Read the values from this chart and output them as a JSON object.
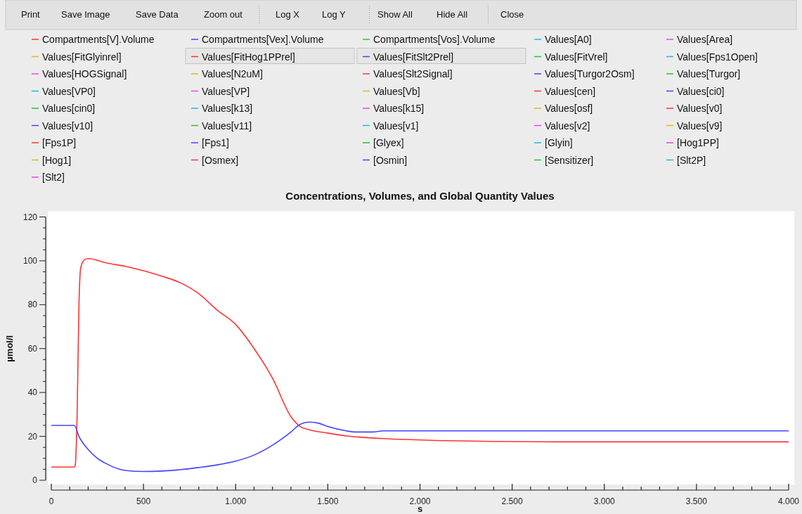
{
  "chart_data": {
    "type": "line",
    "title": "Concentrations, Volumes, and Global Quantity Values",
    "xlabel": "s",
    "ylabel": "µmol/l",
    "annotations": [
      "Print",
      "Save Image",
      "Save Data",
      "Zoom out",
      "Log X",
      "Log Y",
      "Show All",
      "Hide All",
      "Close"
    ],
    "legend": "top",
    "grid": false,
    "marker": "none",
    "line_style": "solid",
    "xlim": [
      0,
      4000
    ],
    "ylim": [
      0,
      120
    ],
    "xticks": [
      0,
      {
        "value": 100,
        "label": null
      },
      {
        "value": 200,
        "label": null
      },
      {
        "value": 300,
        "label": null
      },
      {
        "value": 400,
        "label": null
      },
      500,
      {
        "value": 600,
        "label": null
      },
      {
        "value": 700,
        "label": null
      },
      {
        "value": 800,
        "label": null
      },
      {
        "value": 900,
        "label": null
      },
      {
        "value": 1000,
        "label": "1.000"
      },
      {
        "value": 1100,
        "label": null
      },
      {
        "value": 1200,
        "label": null
      },
      {
        "value": 1300,
        "label": null
      },
      {
        "value": 1400,
        "label": null
      },
      {
        "value": 1500,
        "label": "1.500"
      },
      {
        "value": 1600,
        "label": null
      },
      {
        "value": 1700,
        "label": null
      },
      {
        "value": 1800,
        "label": null
      },
      {
        "value": 1900,
        "label": null
      },
      {
        "value": 2000,
        "label": "2.000"
      },
      {
        "value": 2100,
        "label": null
      },
      {
        "value": 2200,
        "label": null
      },
      {
        "value": 2300,
        "label": null
      },
      {
        "value": 2400,
        "label": null
      },
      {
        "value": 2500,
        "label": "2.500"
      },
      {
        "value": 2600,
        "label": null
      },
      {
        "value": 2700,
        "label": null
      },
      {
        "value": 2800,
        "label": null
      },
      {
        "value": 2900,
        "label": null
      },
      {
        "value": 3000,
        "label": "3.000"
      },
      {
        "value": 3100,
        "label": null
      },
      {
        "value": 3200,
        "label": null
      },
      {
        "value": 3300,
        "label": null
      },
      {
        "value": 3400,
        "label": null
      },
      {
        "value": 3500,
        "label": "3.500"
      },
      {
        "value": 3600,
        "label": null
      },
      {
        "value": 3700,
        "label": null
      },
      {
        "value": 3800,
        "label": null
      },
      {
        "value": 3900,
        "label": null
      },
      {
        "value": 4000,
        "label": "4.000"
      }
    ],
    "yticks": [
      0,
      {
        "value": 5,
        "label": null
      },
      {
        "value": 10,
        "label": null
      },
      {
        "value": 15,
        "label": null
      },
      20,
      {
        "value": 25,
        "label": null
      },
      {
        "value": 30,
        "label": null
      },
      {
        "value": 35,
        "label": null
      },
      40,
      {
        "value": 45,
        "label": null
      },
      {
        "value": 50,
        "label": null
      },
      {
        "value": 55,
        "label": null
      },
      60,
      {
        "value": 65,
        "label": null
      },
      {
        "value": 70,
        "label": null
      },
      {
        "value": 75,
        "label": null
      },
      80,
      {
        "value": 85,
        "label": null
      },
      {
        "value": 90,
        "label": null
      },
      {
        "value": 95,
        "label": null
      },
      100,
      {
        "value": 105,
        "label": null
      },
      {
        "value": 110,
        "label": null
      },
      {
        "value": 115,
        "label": null
      },
      120
    ],
    "series": [
      {
        "name": "Compartments[V].Volume",
        "color": "#ff3333"
      },
      {
        "name": "Compartments[Vex].Volume",
        "color": "#4444ff"
      },
      {
        "name": "Compartments[Vos].Volume",
        "color": "#22cc22"
      },
      {
        "name": "Values[A0]",
        "color": "#22bbdd"
      },
      {
        "name": "Values[Area]",
        "color": "#ee44ee"
      },
      {
        "name": "Values[FitGlyinrel]",
        "color": "#ddbb22"
      },
      {
        "name": "Values[FitHog1PPrel]",
        "color": "#ff3333",
        "x": [
          0,
          125,
          130,
          140,
          150,
          160,
          180,
          200,
          300,
          400,
          500,
          600,
          700,
          800,
          900,
          1000,
          1100,
          1200,
          1300,
          1350,
          1400,
          1500,
          1600,
          1700,
          1800,
          1950,
          2150,
          2770,
          4000
        ],
        "values": [
          6,
          6,
          7,
          30,
          80,
          97,
          100.5,
          101,
          99,
          97.5,
          95.5,
          93,
          90,
          85,
          77.5,
          71,
          60,
          46.5,
          29,
          24.5,
          23,
          21.5,
          20.2,
          19.5,
          19,
          18.5,
          18,
          17.5,
          17.5
        ]
      },
      {
        "name": "Values[FitSlt2Prel]",
        "color": "#4444ff",
        "x": [
          0,
          125,
          150,
          200,
          250,
          300,
          400,
          500,
          600,
          700,
          800,
          900,
          1000,
          1100,
          1200,
          1300,
          1350,
          1400,
          1450,
          1500,
          1600,
          1650,
          1750,
          1800,
          4000
        ],
        "values": [
          25,
          25,
          20,
          14,
          10,
          7.5,
          4.5,
          4,
          4.2,
          4.8,
          5.8,
          7,
          8.7,
          11.5,
          16,
          22,
          25.5,
          26.5,
          26,
          24.5,
          22.5,
          22,
          22,
          22.5,
          22.5
        ]
      },
      {
        "name": "Values[FitVrel]",
        "color": "#22cc22"
      },
      {
        "name": "Values[Fps1Open]",
        "color": "#22bbdd"
      },
      {
        "name": "Values[HOGSignal]",
        "color": "#ee44ee"
      },
      {
        "name": "Values[N2uM]",
        "color": "#ddbb22"
      },
      {
        "name": "Values[Slt2Signal]",
        "color": "#ff3333"
      },
      {
        "name": "Values[Turgor2Osm]",
        "color": "#4444ff"
      },
      {
        "name": "Values[Turgor]",
        "color": "#22cc22"
      },
      {
        "name": "Values[VP0]",
        "color": "#22bbdd"
      },
      {
        "name": "Values[VP]",
        "color": "#ee44ee"
      },
      {
        "name": "Values[Vb]",
        "color": "#ddbb22"
      },
      {
        "name": "Values[cen]",
        "color": "#ff3333"
      },
      {
        "name": "Values[ci0]",
        "color": "#4444ff"
      },
      {
        "name": "Values[cin0]",
        "color": "#22cc22"
      },
      {
        "name": "Values[k13]",
        "color": "#22bbdd"
      },
      {
        "name": "Values[k15]",
        "color": "#ee44ee"
      },
      {
        "name": "Values[osf]",
        "color": "#ddbb22"
      },
      {
        "name": "Values[v0]",
        "color": "#ff3333"
      },
      {
        "name": "Values[v10]",
        "color": "#4444ff"
      },
      {
        "name": "Values[v11]",
        "color": "#22cc22"
      },
      {
        "name": "Values[v1]",
        "color": "#22bbdd"
      },
      {
        "name": "Values[v2]",
        "color": "#ee44ee"
      },
      {
        "name": "Values[v9]",
        "color": "#ddbb22"
      },
      {
        "name": "[Fps1P]",
        "color": "#ff3333"
      },
      {
        "name": "[Fps1]",
        "color": "#4444ff"
      },
      {
        "name": "[Glyex]",
        "color": "#22cc22"
      },
      {
        "name": "[Glyin]",
        "color": "#22bbdd"
      },
      {
        "name": "[Hog1PP]",
        "color": "#ee44ee"
      },
      {
        "name": "[Hog1]",
        "color": "#ddbb22"
      },
      {
        "name": "[Osmex]",
        "color": "#ff3333"
      },
      {
        "name": "[Osmin]",
        "color": "#4444ff"
      },
      {
        "name": "[Sensitizer]",
        "color": "#22cc22"
      },
      {
        "name": "[Slt2P]",
        "color": "#22bbdd"
      },
      {
        "name": "[Slt2]",
        "color": "#ee44ee"
      }
    ]
  }
}
